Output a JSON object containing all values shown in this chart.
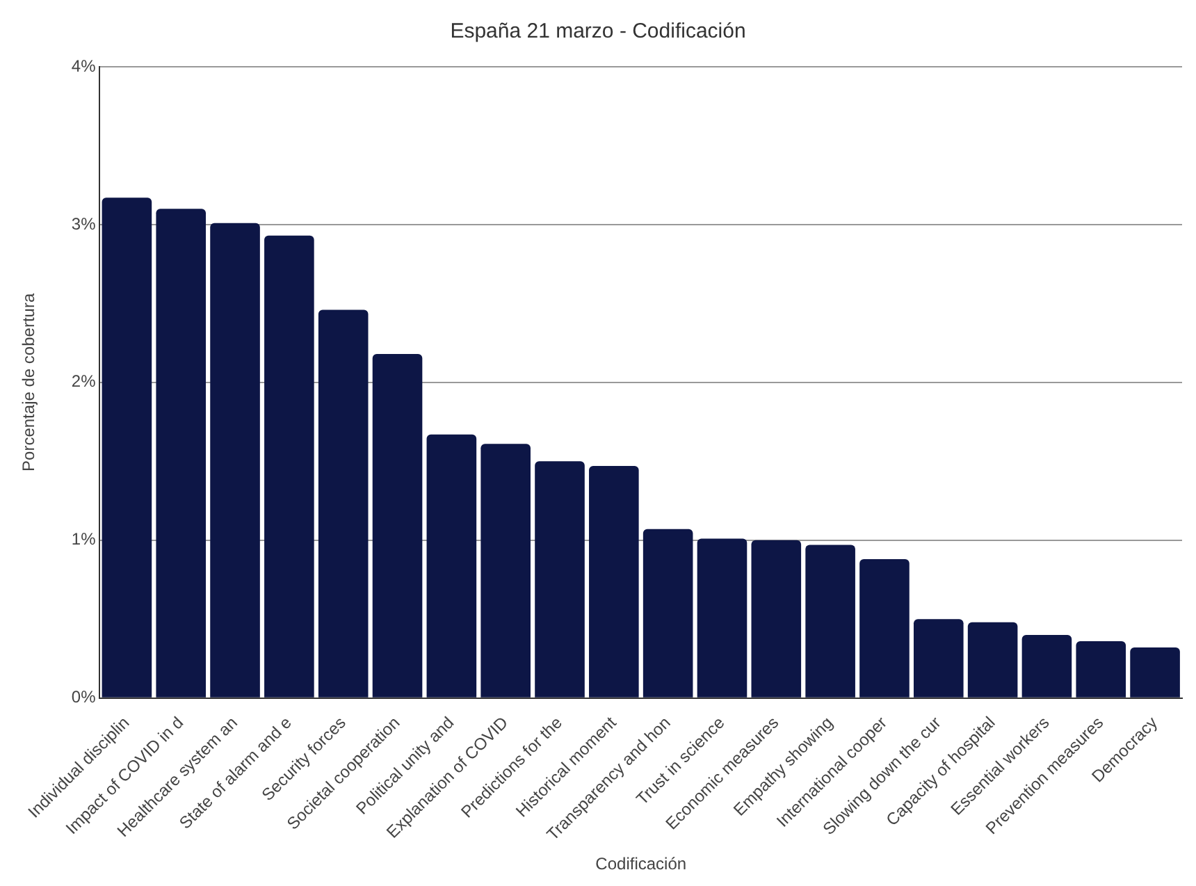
{
  "chart_data": {
    "type": "bar",
    "title": "España 21 marzo - Codificación",
    "xlabel": "Codificación",
    "ylabel": "Porcentaje de cobertura",
    "categories": [
      "Individual disciplin",
      "Impact of COVID in d",
      "Healthcare system an",
      "State of alarm and e",
      "Security forces",
      "Societal cooperation",
      "Political unity and",
      "Explanation of COVID",
      "Predictions for the",
      "Historical moment",
      "Transparency and hon",
      "Trust in science",
      "Economic measures",
      "Empathy showing",
      "International cooper",
      "Slowing down the cur",
      "Capacity of hospital",
      "Essential workers",
      "Prevention measures",
      "Democracy"
    ],
    "values": [
      3.17,
      3.1,
      3.01,
      2.93,
      2.46,
      2.18,
      1.67,
      1.61,
      1.5,
      1.47,
      1.07,
      1.01,
      1.0,
      0.97,
      0.88,
      0.5,
      0.48,
      0.4,
      0.36,
      0.32
    ],
    "color": "#0d1646",
    "ylim": [
      0,
      4
    ],
    "yticks": [
      {
        "value": 0,
        "label": "0%"
      },
      {
        "value": 1,
        "label": "1%"
      },
      {
        "value": 2,
        "label": "2%"
      },
      {
        "value": 3,
        "label": "3%"
      },
      {
        "value": 4,
        "label": "4%"
      }
    ],
    "grid": "y",
    "legend": false
  }
}
